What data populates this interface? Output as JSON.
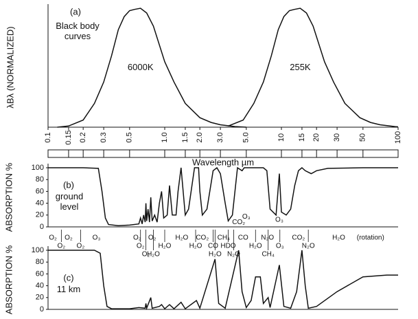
{
  "chart_data": [
    {
      "type": "line",
      "title": "(a)",
      "subtitle": "Black body curves",
      "ylabel": "λBλ (NORMALIZED)",
      "xlabel": "Wavelength µm",
      "xscale": "log",
      "xlim": [
        0.1,
        100
      ],
      "ylim": [
        0,
        1
      ],
      "xticks": [
        0.1,
        0.15,
        0.2,
        0.3,
        0.5,
        {
          "value": 1,
          "label": "1.0"
        },
        1.5,
        {
          "value": 2,
          "label": "2.0"
        },
        {
          "value": 3,
          "label": "3.0"
        },
        {
          "value": 5,
          "label": "5.0"
        },
        10,
        15,
        20,
        30,
        50,
        100
      ],
      "series": [
        {
          "name": "6000K",
          "color": "#111111",
          "x": [
            0.12,
            0.15,
            0.2,
            0.25,
            0.3,
            0.35,
            0.4,
            0.45,
            0.5,
            0.55,
            0.62,
            0.7,
            0.8,
            1.0,
            1.2,
            1.5,
            2.0,
            2.5,
            3.0,
            4.0,
            5.0
          ],
          "values": [
            0,
            0.01,
            0.06,
            0.2,
            0.38,
            0.6,
            0.82,
            0.93,
            0.98,
            0.99,
            1.0,
            0.96,
            0.85,
            0.55,
            0.38,
            0.2,
            0.08,
            0.04,
            0.02,
            0.005,
            0
          ]
        },
        {
          "name": "255K",
          "color": "#111111",
          "x": [
            3.5,
            4.7,
            5.8,
            7.0,
            8.2,
            9.4,
            10.5,
            11.7,
            12.9,
            14.5,
            16.4,
            18.7,
            23.4,
            28,
            35,
            47,
            58,
            70,
            94,
            100
          ],
          "values": [
            0.01,
            0.06,
            0.2,
            0.38,
            0.6,
            0.82,
            0.93,
            0.98,
            0.99,
            1.0,
            0.96,
            0.85,
            0.55,
            0.38,
            0.2,
            0.08,
            0.04,
            0.02,
            0.005,
            0.003
          ]
        }
      ]
    },
    {
      "type": "line",
      "title": "(b)",
      "subtitle": "ground level",
      "ylabel": "ABSORPTION %",
      "xscale": "log",
      "xlim": [
        0.1,
        100
      ],
      "ylim": [
        0,
        100
      ],
      "yticks": [
        0,
        20,
        40,
        60,
        80,
        100
      ],
      "series": [
        {
          "name": "ground level",
          "color": "#111111",
          "x": [
            0.1,
            0.2,
            0.27,
            0.29,
            0.31,
            0.33,
            0.4,
            0.5,
            0.6,
            0.62,
            0.64,
            0.66,
            0.68,
            0.69,
            0.7,
            0.72,
            0.74,
            0.76,
            0.78,
            0.82,
            0.86,
            0.9,
            0.94,
            0.98,
            1.05,
            1.1,
            1.16,
            1.25,
            1.3,
            1.38,
            1.5,
            1.6,
            1.8,
            1.95,
            2.0,
            2.1,
            2.3,
            2.6,
            2.8,
            3.0,
            3.3,
            3.5,
            3.8,
            4.2,
            4.6,
            4.8,
            5.5,
            6.0,
            7.0,
            7.5,
            8.0,
            9.0,
            9.6,
            10,
            11,
            12,
            13,
            14,
            15,
            16,
            18,
            20,
            25,
            50,
            100
          ],
          "values": [
            100,
            100,
            99,
            60,
            15,
            4,
            2,
            3,
            5,
            15,
            5,
            20,
            8,
            40,
            10,
            30,
            8,
            50,
            10,
            20,
            8,
            40,
            60,
            15,
            20,
            70,
            20,
            20,
            60,
            100,
            20,
            30,
            100,
            100,
            60,
            20,
            30,
            95,
            100,
            90,
            40,
            10,
            20,
            100,
            95,
            100,
            100,
            100,
            100,
            95,
            30,
            20,
            90,
            25,
            20,
            30,
            70,
            95,
            100,
            95,
            90,
            95,
            99,
            100,
            100
          ]
        }
      ],
      "annotations": [
        {
          "text": "CO₂",
          "x": 4.3,
          "y": 8
        },
        {
          "text": "O₃",
          "x": 5.0,
          "y": 17
        },
        {
          "text": "O₃",
          "x": 9.6,
          "y": 12
        }
      ],
      "band_labels": [
        {
          "label": "O₂",
          "x": 0.11
        },
        {
          "label": "O₂",
          "x": 0.13
        },
        {
          "label": "O₂",
          "x": 0.15
        },
        {
          "label": "O₂",
          "x": 0.19
        },
        {
          "label": "O₃",
          "x": 0.26
        },
        {
          "label": "O₂",
          "x": 0.58
        },
        {
          "label": "O₂",
          "x": 0.62
        },
        {
          "label": "O₂",
          "x": 0.69
        },
        {
          "label": "O₂",
          "x": 0.78
        },
        {
          "label": "H₂O",
          "x": 0.8
        },
        {
          "label": "H₂O",
          "x": 1.0
        },
        {
          "label": "H₂O",
          "x": 1.4
        },
        {
          "label": "H₂O",
          "x": 1.84
        },
        {
          "label": "CO₂",
          "x": 2.1
        },
        {
          "label": "CO",
          "x": 2.6
        },
        {
          "label": "H₂O",
          "x": 2.7
        },
        {
          "label": "CH₄",
          "x": 3.2
        },
        {
          "label": "HDO",
          "x": 3.5
        },
        {
          "label": "N₂O",
          "x": 3.9
        },
        {
          "label": "CO",
          "x": 4.7
        },
        {
          "label": "H₂O",
          "x": 6.0
        },
        {
          "label": "N₂O",
          "x": 7.6
        },
        {
          "label": "CH₄",
          "x": 7.7
        },
        {
          "label": "O₃",
          "x": 9.7
        },
        {
          "label": "CO₂",
          "x": 14
        },
        {
          "label": "N₂O",
          "x": 17
        },
        {
          "label": "H₂O",
          "x": 31
        },
        {
          "label": "(rotation)",
          "x": 58
        }
      ]
    },
    {
      "type": "line",
      "title": "(c)",
      "subtitle": "11 km",
      "ylabel": "ABSORPTION %",
      "xscale": "log",
      "xlim": [
        0.1,
        100
      ],
      "ylim": [
        0,
        100
      ],
      "yticks": [
        0,
        20,
        40,
        60,
        80,
        100
      ],
      "series": [
        {
          "name": "11 km",
          "color": "#111111",
          "x": [
            0.1,
            0.25,
            0.28,
            0.3,
            0.32,
            0.35,
            0.5,
            0.6,
            0.68,
            0.69,
            0.7,
            0.76,
            0.78,
            0.9,
            0.94,
            1.0,
            1.1,
            1.2,
            1.38,
            1.5,
            1.87,
            2.0,
            2.7,
            2.9,
            3.3,
            4.3,
            4.6,
            5.0,
            5.5,
            6.0,
            6.3,
            6.6,
            7.0,
            7.7,
            8.0,
            9.6,
            10.5,
            12,
            13.5,
            15,
            16,
            17,
            20,
            30,
            50,
            80,
            100
          ],
          "values": [
            100,
            100,
            95,
            40,
            5,
            1,
            1,
            3,
            2,
            10,
            2,
            20,
            2,
            5,
            8,
            1,
            8,
            1,
            12,
            1,
            15,
            2,
            85,
            10,
            2,
            100,
            30,
            3,
            15,
            55,
            55,
            55,
            10,
            20,
            3,
            75,
            5,
            2,
            30,
            100,
            40,
            2,
            5,
            30,
            55,
            58,
            58
          ]
        }
      ]
    }
  ]
}
